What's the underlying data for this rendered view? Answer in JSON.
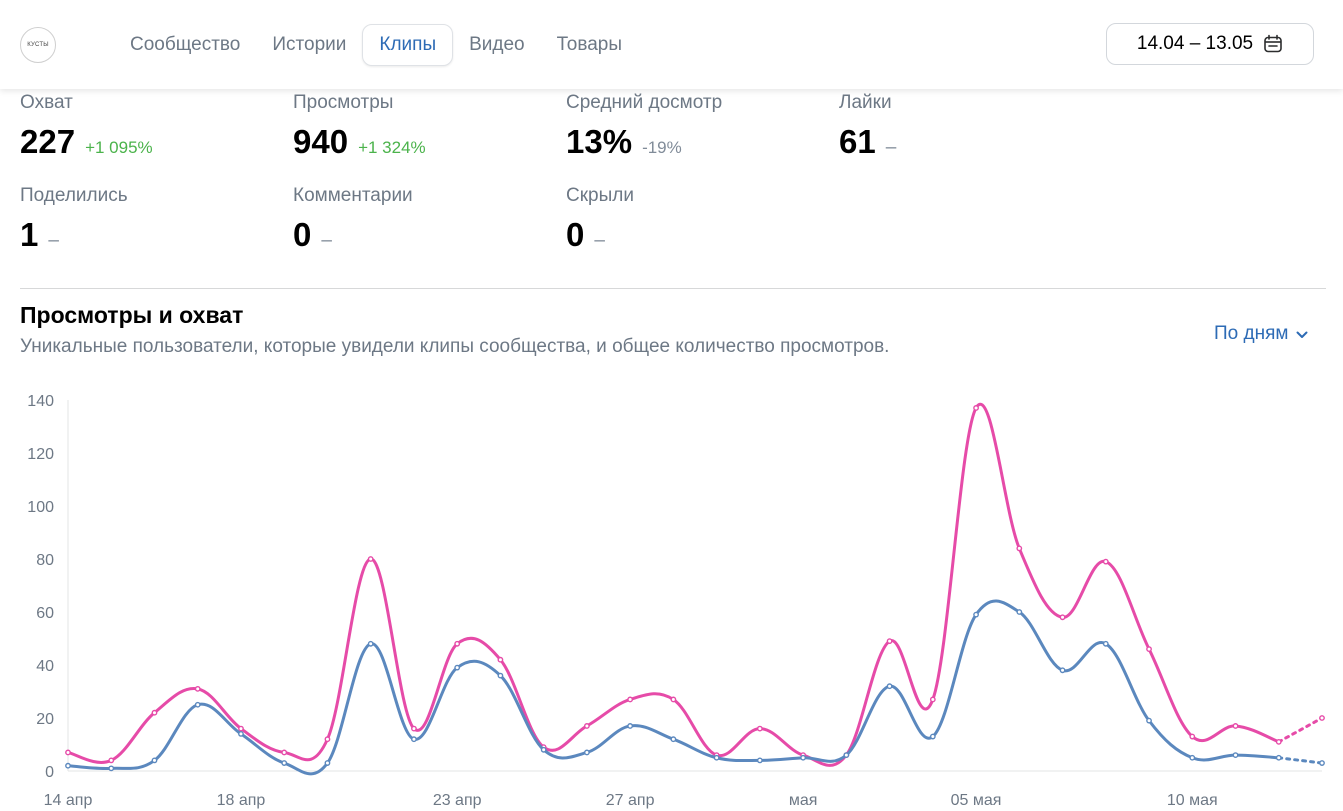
{
  "header": {
    "logo_text": "КУСТЫ",
    "tabs": [
      {
        "label": "Сообщество",
        "active": false
      },
      {
        "label": "Истории",
        "active": false
      },
      {
        "label": "Клипы",
        "active": true
      },
      {
        "label": "Видео",
        "active": false
      },
      {
        "label": "Товары",
        "active": false
      }
    ],
    "date_range": "14.04 – 13.05",
    "date_icon": "calendar-icon"
  },
  "stats": [
    {
      "label": "Охват",
      "value": "227",
      "delta": "+1 095%",
      "trend": "up"
    },
    {
      "label": "Просмотры",
      "value": "940",
      "delta": "+1 324%",
      "trend": "up"
    },
    {
      "label": "Средний досмотр",
      "value": "13%",
      "delta": "-19%",
      "trend": "down"
    },
    {
      "label": "Лайки",
      "value": "61",
      "delta": "–",
      "trend": "none"
    },
    {
      "label": "Поделились",
      "value": "1",
      "delta": "–",
      "trend": "none"
    },
    {
      "label": "Комментарии",
      "value": "0",
      "delta": "–",
      "trend": "none"
    },
    {
      "label": "Скрыли",
      "value": "0",
      "delta": "–",
      "trend": "none"
    }
  ],
  "chart_section": {
    "title": "Просмотры и охват",
    "subtitle": "Уникальные пользователи, которые увидели клипы сообщества, и общее количество просмотров.",
    "period_label": "По дням"
  },
  "colors": {
    "views": "#e64ba8",
    "reach": "#5b88be",
    "accent": "#2d6bb5",
    "positive": "#4bb34b"
  },
  "chart_data": {
    "type": "line",
    "x": [
      "14.04",
      "15.04",
      "16.04",
      "17.04",
      "18.04",
      "19.04",
      "20.04",
      "21.04",
      "22.04",
      "23.04",
      "24.04",
      "25.04",
      "26.04",
      "27.04",
      "28.04",
      "29.04",
      "30.04",
      "01.05",
      "02.05",
      "03.05",
      "04.05",
      "05.05",
      "06.05",
      "07.05",
      "08.05",
      "09.05",
      "10.05",
      "11.05",
      "12.05",
      "13.05"
    ],
    "x_tick_labels": [
      {
        "index": 0,
        "label": "14 апр"
      },
      {
        "index": 4,
        "label": "18 апр"
      },
      {
        "index": 9,
        "label": "23 апр"
      },
      {
        "index": 13,
        "label": "27 апр"
      },
      {
        "index": 17,
        "label": "мая"
      },
      {
        "index": 21,
        "label": "05 мая"
      },
      {
        "index": 26,
        "label": "10 мая"
      }
    ],
    "series": [
      {
        "values": [
          7,
          4,
          22,
          31,
          16,
          7,
          12,
          80,
          16,
          48,
          42,
          9,
          17,
          27,
          27,
          6,
          16,
          6,
          6,
          49,
          27,
          137,
          84,
          58,
          79,
          46,
          13,
          17,
          11,
          20
        ]
      },
      {
        "values": [
          2,
          1,
          4,
          25,
          14,
          3,
          3,
          48,
          12,
          39,
          36,
          8,
          7,
          17,
          12,
          5,
          4,
          5,
          6,
          32,
          13,
          59,
          60,
          38,
          48,
          19,
          5,
          6,
          5,
          3
        ]
      }
    ],
    "forecast_last_point": true,
    "ylim": [
      0,
      140
    ],
    "y_ticks": [
      0,
      20,
      40,
      60,
      80,
      100,
      120,
      140
    ],
    "grid": false
  }
}
